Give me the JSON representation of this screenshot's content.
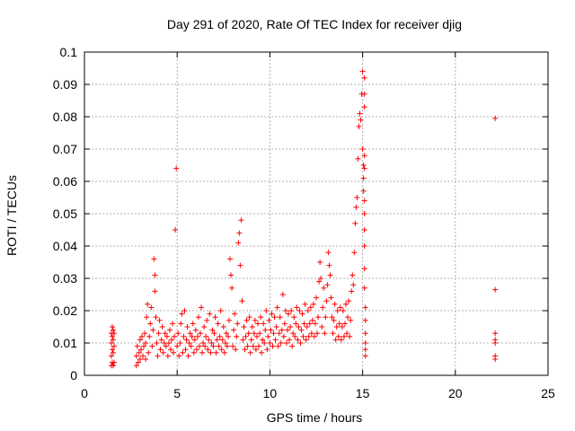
{
  "chart_data": {
    "type": "scatter",
    "title": "Day 291 of 2020, Rate Of TEC Index for receiver djig",
    "xlabel": "GPS time / hours",
    "ylabel": "ROTI / TECUs",
    "xlim": [
      0,
      25
    ],
    "ylim": [
      0,
      0.1
    ],
    "xticks": [
      0,
      5,
      10,
      15,
      20,
      25
    ],
    "yticks": [
      0,
      0.01,
      0.02,
      0.03,
      0.04,
      0.05,
      0.06,
      0.07,
      0.08,
      0.09,
      0.1
    ],
    "xtick_labels": [
      "0",
      "5",
      "10",
      "15",
      "20",
      "25"
    ],
    "ytick_labels": [
      "0",
      "0.01",
      "0.02",
      "0.03",
      "0.04",
      "0.05",
      "0.06",
      "0.07",
      "0.08",
      "0.09",
      "0.1"
    ],
    "grid": true,
    "marker": "+",
    "color": "#ff0000",
    "series": [
      {
        "points": [
          [
            1.45,
            0.003
          ],
          [
            1.45,
            0.006
          ],
          [
            1.45,
            0.01
          ],
          [
            1.45,
            0.013
          ],
          [
            1.5,
            0.004
          ],
          [
            1.5,
            0.008
          ],
          [
            1.5,
            0.012
          ],
          [
            1.5,
            0.015
          ],
          [
            1.55,
            0.003
          ],
          [
            1.55,
            0.007
          ],
          [
            1.55,
            0.011
          ],
          [
            1.55,
            0.014
          ],
          [
            1.6,
            0.004
          ],
          [
            1.6,
            0.009
          ],
          [
            1.6,
            0.013
          ],
          [
            2.8,
            0.003
          ],
          [
            2.8,
            0.006
          ],
          [
            2.85,
            0.009
          ],
          [
            2.9,
            0.004
          ],
          [
            2.95,
            0.007
          ],
          [
            3.0,
            0.011
          ],
          [
            3.0,
            0.005
          ],
          [
            3.05,
            0.008
          ],
          [
            3.1,
            0.012
          ],
          [
            3.15,
            0.006
          ],
          [
            3.2,
            0.009
          ],
          [
            3.25,
            0.013
          ],
          [
            3.3,
            0.005
          ],
          [
            3.3,
            0.01
          ],
          [
            3.35,
            0.018
          ],
          [
            3.4,
            0.022
          ],
          [
            3.45,
            0.007
          ],
          [
            3.5,
            0.012
          ],
          [
            3.55,
            0.016
          ],
          [
            3.6,
            0.021
          ],
          [
            3.65,
            0.009
          ],
          [
            3.7,
            0.014
          ],
          [
            3.75,
            0.036
          ],
          [
            3.8,
            0.031
          ],
          [
            3.8,
            0.026
          ],
          [
            3.85,
            0.018
          ],
          [
            3.9,
            0.01
          ],
          [
            3.95,
            0.006
          ],
          [
            4.0,
            0.013
          ],
          [
            4.05,
            0.017
          ],
          [
            4.1,
            0.008
          ],
          [
            4.15,
            0.011
          ],
          [
            4.2,
            0.015
          ],
          [
            4.25,
            0.007
          ],
          [
            4.3,
            0.01
          ],
          [
            4.35,
            0.013
          ],
          [
            4.4,
            0.009
          ],
          [
            4.45,
            0.012
          ],
          [
            4.5,
            0.006
          ],
          [
            4.55,
            0.01
          ],
          [
            4.6,
            0.014
          ],
          [
            4.65,
            0.008
          ],
          [
            4.7,
            0.011
          ],
          [
            4.75,
            0.016
          ],
          [
            4.8,
            0.007
          ],
          [
            4.85,
            0.012
          ],
          [
            4.9,
            0.045
          ],
          [
            4.95,
            0.064
          ],
          [
            5.0,
            0.009
          ],
          [
            5.05,
            0.013
          ],
          [
            5.1,
            0.006
          ],
          [
            5.15,
            0.01
          ],
          [
            5.2,
            0.016
          ],
          [
            5.25,
            0.019
          ],
          [
            5.3,
            0.007
          ],
          [
            5.35,
            0.012
          ],
          [
            5.4,
            0.02
          ],
          [
            5.45,
            0.008
          ],
          [
            5.5,
            0.011
          ],
          [
            5.55,
            0.015
          ],
          [
            5.6,
            0.006
          ],
          [
            5.65,
            0.01
          ],
          [
            5.7,
            0.013
          ],
          [
            5.75,
            0.009
          ],
          [
            5.8,
            0.012
          ],
          [
            5.85,
            0.016
          ],
          [
            5.9,
            0.007
          ],
          [
            5.95,
            0.011
          ],
          [
            6.0,
            0.014
          ],
          [
            6.05,
            0.008
          ],
          [
            6.1,
            0.012
          ],
          [
            6.15,
            0.018
          ],
          [
            6.2,
            0.009
          ],
          [
            6.25,
            0.013
          ],
          [
            6.3,
            0.021
          ],
          [
            6.35,
            0.007
          ],
          [
            6.4,
            0.01
          ],
          [
            6.45,
            0.015
          ],
          [
            6.5,
            0.009
          ],
          [
            6.55,
            0.012
          ],
          [
            6.6,
            0.017
          ],
          [
            6.65,
            0.008
          ],
          [
            6.7,
            0.011
          ],
          [
            6.75,
            0.019
          ],
          [
            6.8,
            0.007
          ],
          [
            6.85,
            0.01
          ],
          [
            6.9,
            0.014
          ],
          [
            6.95,
            0.009
          ],
          [
            7.0,
            0.013
          ],
          [
            7.05,
            0.018
          ],
          [
            7.1,
            0.007
          ],
          [
            7.15,
            0.011
          ],
          [
            7.2,
            0.016
          ],
          [
            7.25,
            0.009
          ],
          [
            7.3,
            0.012
          ],
          [
            7.35,
            0.02
          ],
          [
            7.4,
            0.008
          ],
          [
            7.45,
            0.011
          ],
          [
            7.5,
            0.015
          ],
          [
            7.55,
            0.007
          ],
          [
            7.6,
            0.01
          ],
          [
            7.65,
            0.013
          ],
          [
            7.7,
            0.009
          ],
          [
            7.75,
            0.012
          ],
          [
            7.8,
            0.017
          ],
          [
            7.85,
            0.036
          ],
          [
            7.9,
            0.031
          ],
          [
            7.95,
            0.027
          ],
          [
            8.0,
            0.009
          ],
          [
            8.05,
            0.014
          ],
          [
            8.1,
            0.019
          ],
          [
            8.15,
            0.008
          ],
          [
            8.2,
            0.012
          ],
          [
            8.25,
            0.016
          ],
          [
            8.3,
            0.041
          ],
          [
            8.35,
            0.044
          ],
          [
            8.4,
            0.034
          ],
          [
            8.45,
            0.048
          ],
          [
            8.5,
            0.023
          ],
          [
            8.55,
            0.011
          ],
          [
            8.6,
            0.015
          ],
          [
            8.65,
            0.008
          ],
          [
            8.7,
            0.012
          ],
          [
            8.75,
            0.017
          ],
          [
            8.8,
            0.009
          ],
          [
            8.85,
            0.013
          ],
          [
            8.9,
            0.018
          ],
          [
            8.95,
            0.007
          ],
          [
            9.0,
            0.011
          ],
          [
            9.05,
            0.015
          ],
          [
            9.1,
            0.009
          ],
          [
            9.15,
            0.013
          ],
          [
            9.2,
            0.017
          ],
          [
            9.25,
            0.008
          ],
          [
            9.3,
            0.012
          ],
          [
            9.35,
            0.016
          ],
          [
            9.4,
            0.009
          ],
          [
            9.45,
            0.013
          ],
          [
            9.5,
            0.018
          ],
          [
            9.55,
            0.007
          ],
          [
            9.6,
            0.011
          ],
          [
            9.65,
            0.016
          ],
          [
            9.7,
            0.01
          ],
          [
            9.75,
            0.014
          ],
          [
            9.8,
            0.02
          ],
          [
            9.85,
            0.008
          ],
          [
            9.9,
            0.012
          ],
          [
            9.95,
            0.017
          ],
          [
            10.0,
            0.01
          ],
          [
            10.05,
            0.014
          ],
          [
            10.1,
            0.019
          ],
          [
            10.15,
            0.009
          ],
          [
            10.2,
            0.013
          ],
          [
            10.25,
            0.018
          ],
          [
            10.3,
            0.011
          ],
          [
            10.35,
            0.015
          ],
          [
            10.4,
            0.021
          ],
          [
            10.45,
            0.009
          ],
          [
            10.5,
            0.013
          ],
          [
            10.55,
            0.018
          ],
          [
            10.6,
            0.01
          ],
          [
            10.65,
            0.014
          ],
          [
            10.7,
            0.025
          ],
          [
            10.75,
            0.012
          ],
          [
            10.8,
            0.016
          ],
          [
            10.85,
            0.02
          ],
          [
            10.9,
            0.01
          ],
          [
            10.95,
            0.014
          ],
          [
            11.0,
            0.019
          ],
          [
            11.05,
            0.011
          ],
          [
            11.1,
            0.015
          ],
          [
            11.15,
            0.02
          ],
          [
            11.2,
            0.009
          ],
          [
            11.25,
            0.013
          ],
          [
            11.3,
            0.018
          ],
          [
            11.35,
            0.012
          ],
          [
            11.4,
            0.016
          ],
          [
            11.45,
            0.021
          ],
          [
            11.5,
            0.011
          ],
          [
            11.55,
            0.015
          ],
          [
            11.6,
            0.02
          ],
          [
            11.65,
            0.01
          ],
          [
            11.7,
            0.014
          ],
          [
            11.75,
            0.019
          ],
          [
            11.8,
            0.012
          ],
          [
            11.85,
            0.016
          ],
          [
            11.9,
            0.022
          ],
          [
            11.95,
            0.011
          ],
          [
            12.0,
            0.015
          ],
          [
            12.05,
            0.02
          ],
          [
            12.1,
            0.012
          ],
          [
            12.15,
            0.016
          ],
          [
            12.2,
            0.021
          ],
          [
            12.25,
            0.013
          ],
          [
            12.3,
            0.017
          ],
          [
            12.35,
            0.022
          ],
          [
            12.4,
            0.012
          ],
          [
            12.45,
            0.016
          ],
          [
            12.5,
            0.024
          ],
          [
            12.55,
            0.013
          ],
          [
            12.6,
            0.018
          ],
          [
            12.65,
            0.029
          ],
          [
            12.7,
            0.035
          ],
          [
            12.75,
            0.03
          ],
          [
            12.8,
            0.015
          ],
          [
            12.85,
            0.021
          ],
          [
            12.9,
            0.027
          ],
          [
            12.95,
            0.013
          ],
          [
            13.0,
            0.018
          ],
          [
            13.05,
            0.023
          ],
          [
            13.1,
            0.028
          ],
          [
            13.15,
            0.038
          ],
          [
            13.2,
            0.034
          ],
          [
            13.25,
            0.031
          ],
          [
            13.3,
            0.024
          ],
          [
            13.35,
            0.018
          ],
          [
            13.4,
            0.013
          ],
          [
            13.45,
            0.017
          ],
          [
            13.5,
            0.022
          ],
          [
            13.55,
            0.011
          ],
          [
            13.6,
            0.015
          ],
          [
            13.65,
            0.02
          ],
          [
            13.7,
            0.012
          ],
          [
            13.75,
            0.016
          ],
          [
            13.8,
            0.021
          ],
          [
            13.85,
            0.011
          ],
          [
            13.9,
            0.015
          ],
          [
            13.95,
            0.02
          ],
          [
            14.0,
            0.012
          ],
          [
            14.05,
            0.016
          ],
          [
            14.1,
            0.022
          ],
          [
            14.15,
            0.013
          ],
          [
            14.2,
            0.018
          ],
          [
            14.25,
            0.023
          ],
          [
            14.3,
            0.012
          ],
          [
            14.35,
            0.017
          ],
          [
            14.4,
            0.026
          ],
          [
            14.45,
            0.031
          ],
          [
            14.5,
            0.028
          ],
          [
            14.55,
            0.038
          ],
          [
            14.6,
            0.047
          ],
          [
            14.65,
            0.052
          ],
          [
            14.7,
            0.055
          ],
          [
            14.75,
            0.067
          ],
          [
            14.8,
            0.077
          ],
          [
            14.85,
            0.081
          ],
          [
            14.9,
            0.079
          ],
          [
            14.95,
            0.087
          ],
          [
            15.0,
            0.094
          ],
          [
            15.0,
            0.07
          ],
          [
            15.05,
            0.065
          ],
          [
            15.05,
            0.061
          ],
          [
            15.05,
            0.057
          ],
          [
            15.1,
            0.092
          ],
          [
            15.1,
            0.087
          ],
          [
            15.1,
            0.083
          ],
          [
            15.1,
            0.068
          ],
          [
            15.1,
            0.064
          ],
          [
            15.1,
            0.054
          ],
          [
            15.1,
            0.05
          ],
          [
            15.1,
            0.045
          ],
          [
            15.1,
            0.04
          ],
          [
            15.1,
            0.033
          ],
          [
            15.1,
            0.027
          ],
          [
            15.15,
            0.021
          ],
          [
            15.15,
            0.017
          ],
          [
            15.15,
            0.013
          ],
          [
            15.15,
            0.01
          ],
          [
            15.15,
            0.008
          ],
          [
            15.15,
            0.006
          ],
          [
            22.15,
            0.0795
          ],
          [
            22.15,
            0.0265
          ],
          [
            22.15,
            0.013
          ],
          [
            22.15,
            0.011
          ],
          [
            22.15,
            0.01
          ],
          [
            22.15,
            0.006
          ],
          [
            22.15,
            0.005
          ]
        ]
      }
    ]
  }
}
